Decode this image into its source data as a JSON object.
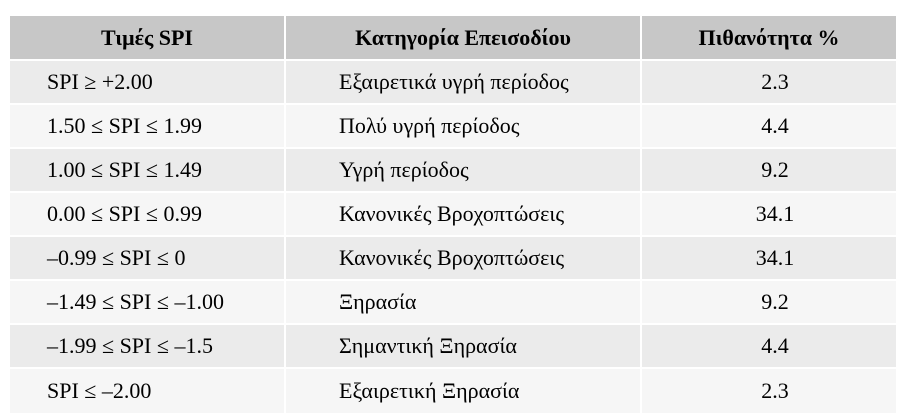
{
  "table": {
    "headers": [
      "Τιμές SPI",
      "Κατηγορία Επεισοδίου",
      "Πιθανότητα %"
    ],
    "rows": [
      {
        "spi": "SPI ≥ +2.00",
        "category": "Εξαιρετικά υγρή περίοδος",
        "probability": "2.3"
      },
      {
        "spi": "1.50 ≤ SPI ≤ 1.99",
        "category": "Πολύ υγρή περίοδος",
        "probability": "4.4"
      },
      {
        "spi": "1.00 ≤ SPI ≤ 1.49",
        "category": "Υγρή περίοδος",
        "probability": "9.2"
      },
      {
        "spi": "0.00 ≤ SPI ≤ 0.99",
        "category": "Κανονικές Βροχοπτώσεις",
        "probability": "34.1"
      },
      {
        "spi": "–0.99 ≤ SPI ≤ 0",
        "category": "Κανονικές Βροχοπτώσεις",
        "probability": "34.1"
      },
      {
        "spi": "–1.49 ≤ SPI ≤ –1.00",
        "category": "Ξηρασία",
        "probability": "9.2"
      },
      {
        "spi": "–1.99 ≤ SPI ≤ –1.5",
        "category": "Σημαντική Ξηρασία",
        "probability": "4.4"
      },
      {
        "spi": "SPI ≤ –2.00",
        "category": "Εξαιρετική Ξηρασία",
        "probability": "2.3"
      }
    ]
  },
  "colors": {
    "header_bg": "#c7c7c7",
    "row_odd_bg": "#ebebeb",
    "row_even_bg": "#f6f6f6"
  }
}
